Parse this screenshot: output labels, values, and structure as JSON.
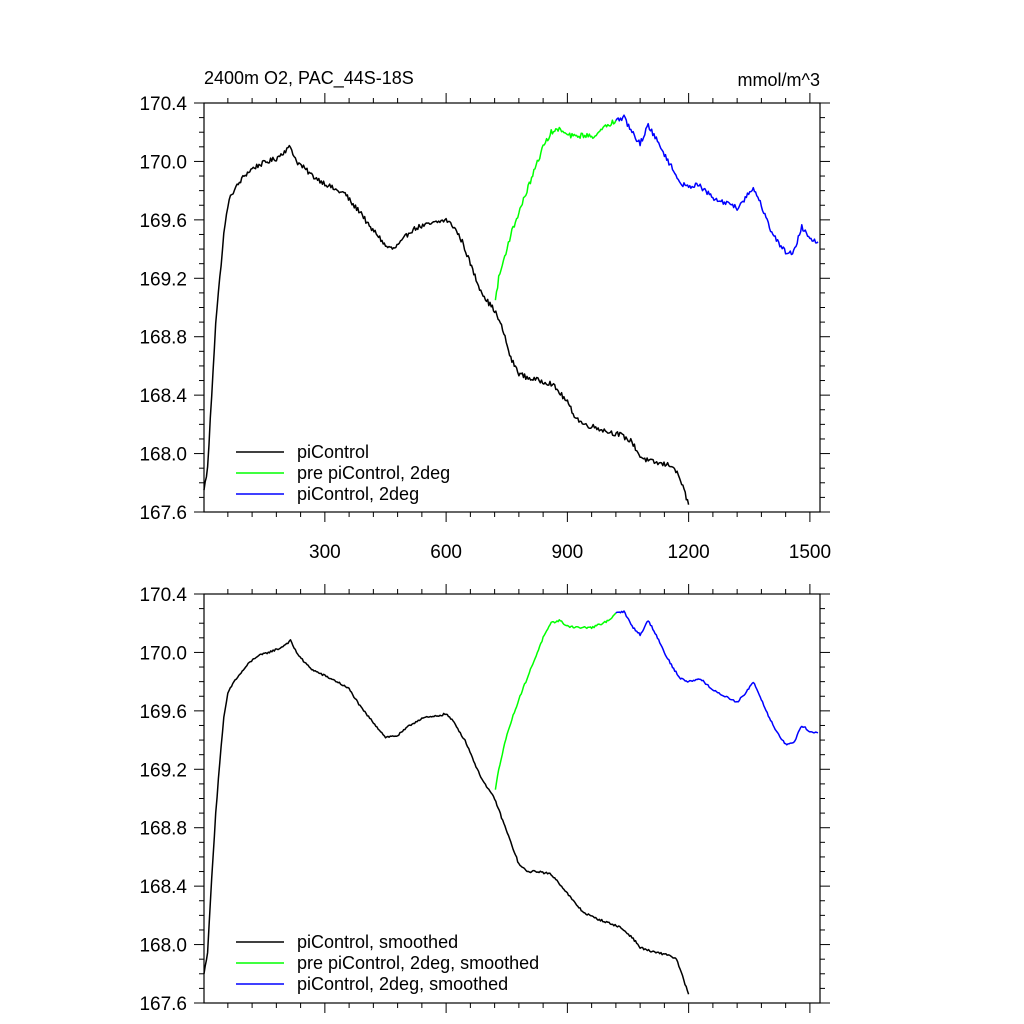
{
  "chart_data": [
    {
      "type": "line",
      "title": "2400m O2, PAC_44S-18S",
      "units": "mmol/m^3",
      "xlabel": "",
      "ylabel": "",
      "xlim": [
        1,
        1525
      ],
      "ylim": [
        167.6,
        170.4
      ],
      "x_ticks": [
        300,
        600,
        900,
        1200,
        1500
      ],
      "x_tick_labels": [
        "300",
        "600",
        "900",
        "1200",
        "1500"
      ],
      "y_ticks": [
        167.6,
        168.0,
        168.4,
        168.8,
        169.2,
        169.6,
        170.0,
        170.4
      ],
      "y_tick_labels": [
        "167.6",
        "168.0",
        "168.4",
        "168.8",
        "169.2",
        "169.6",
        "170.0",
        "170.4"
      ],
      "grid": false,
      "legend_position": "bottom-left",
      "series": [
        {
          "name": "piControl",
          "color": "#000000",
          "points": [
            [
              1,
              167.75
            ],
            [
              10,
              167.9
            ],
            [
              20,
              168.4
            ],
            [
              30,
              168.9
            ],
            [
              40,
              169.2
            ],
            [
              50,
              169.5
            ],
            [
              60,
              169.7
            ],
            [
              70,
              169.78
            ],
            [
              80,
              169.82
            ],
            [
              100,
              169.9
            ],
            [
              120,
              169.95
            ],
            [
              140,
              169.98
            ],
            [
              160,
              170.0
            ],
            [
              180,
              170.02
            ],
            [
              200,
              170.07
            ],
            [
              215,
              170.1
            ],
            [
              230,
              170.0
            ],
            [
              250,
              169.95
            ],
            [
              270,
              169.9
            ],
            [
              300,
              169.85
            ],
            [
              330,
              169.8
            ],
            [
              350,
              169.78
            ],
            [
              370,
              169.7
            ],
            [
              390,
              169.65
            ],
            [
              410,
              169.55
            ],
            [
              430,
              169.5
            ],
            [
              450,
              169.42
            ],
            [
              470,
              169.4
            ],
            [
              490,
              169.45
            ],
            [
              510,
              169.52
            ],
            [
              530,
              169.55
            ],
            [
              560,
              169.57
            ],
            [
              600,
              169.6
            ],
            [
              620,
              169.55
            ],
            [
              640,
              169.45
            ],
            [
              660,
              169.3
            ],
            [
              680,
              169.15
            ],
            [
              700,
              169.05
            ],
            [
              720,
              168.98
            ],
            [
              740,
              168.85
            ],
            [
              760,
              168.65
            ],
            [
              780,
              168.55
            ],
            [
              800,
              168.52
            ],
            [
              830,
              168.5
            ],
            [
              860,
              168.48
            ],
            [
              880,
              168.42
            ],
            [
              900,
              168.35
            ],
            [
              920,
              168.25
            ],
            [
              940,
              168.2
            ],
            [
              970,
              168.18
            ],
            [
              1000,
              168.15
            ],
            [
              1030,
              168.13
            ],
            [
              1060,
              168.08
            ],
            [
              1080,
              167.98
            ],
            [
              1100,
              167.95
            ],
            [
              1130,
              167.93
            ],
            [
              1160,
              167.92
            ],
            [
              1180,
              167.82
            ],
            [
              1200,
              167.65
            ]
          ]
        },
        {
          "name": "pre piControl, 2deg",
          "color": "#00ff00",
          "points": [
            [
              722,
              169.05
            ],
            [
              730,
              169.2
            ],
            [
              745,
              169.35
            ],
            [
              760,
              169.5
            ],
            [
              780,
              169.65
            ],
            [
              800,
              169.8
            ],
            [
              820,
              169.95
            ],
            [
              840,
              170.1
            ],
            [
              860,
              170.2
            ],
            [
              880,
              170.22
            ],
            [
              900,
              170.18
            ],
            [
              920,
              170.17
            ],
            [
              940,
              170.18
            ],
            [
              960,
              170.17
            ],
            [
              980,
              170.2
            ],
            [
              1000,
              170.25
            ],
            [
              1020,
              170.28
            ]
          ]
        },
        {
          "name": "piControl, 2deg",
          "color": "#0000ff",
          "points": [
            [
              1020,
              170.28
            ],
            [
              1040,
              170.3
            ],
            [
              1060,
              170.2
            ],
            [
              1080,
              170.12
            ],
            [
              1100,
              170.25
            ],
            [
              1120,
              170.15
            ],
            [
              1140,
              170.05
            ],
            [
              1160,
              169.95
            ],
            [
              1180,
              169.85
            ],
            [
              1200,
              169.82
            ],
            [
              1220,
              169.85
            ],
            [
              1240,
              169.8
            ],
            [
              1260,
              169.75
            ],
            [
              1280,
              169.72
            ],
            [
              1300,
              169.72
            ],
            [
              1320,
              169.68
            ],
            [
              1340,
              169.75
            ],
            [
              1360,
              169.82
            ],
            [
              1380,
              169.7
            ],
            [
              1400,
              169.55
            ],
            [
              1420,
              169.45
            ],
            [
              1440,
              169.38
            ],
            [
              1460,
              169.38
            ],
            [
              1480,
              169.55
            ],
            [
              1500,
              169.48
            ],
            [
              1520,
              169.45
            ]
          ]
        }
      ]
    },
    {
      "type": "line",
      "title": "",
      "xlabel": "",
      "ylabel": "",
      "xlim": [
        1,
        1525
      ],
      "ylim": [
        167.6,
        170.4
      ],
      "x_ticks": [
        300,
        600,
        900,
        1200,
        1500
      ],
      "x_tick_labels": [],
      "y_ticks": [
        167.6,
        168.0,
        168.4,
        168.8,
        169.2,
        169.6,
        170.0,
        170.4
      ],
      "y_tick_labels": [
        "167.6",
        "168.0",
        "168.4",
        "168.8",
        "169.2",
        "169.6",
        "170.0",
        "170.4"
      ],
      "grid": false,
      "legend_position": "bottom-left",
      "series": [
        {
          "name": "piControl, smoothed",
          "color": "#000000",
          "points": [
            [
              1,
              167.8
            ],
            [
              10,
              167.95
            ],
            [
              20,
              168.45
            ],
            [
              30,
              168.9
            ],
            [
              40,
              169.25
            ],
            [
              50,
              169.55
            ],
            [
              60,
              169.72
            ],
            [
              75,
              169.8
            ],
            [
              90,
              169.85
            ],
            [
              110,
              169.92
            ],
            [
              130,
              169.97
            ],
            [
              160,
              170.0
            ],
            [
              190,
              170.03
            ],
            [
              215,
              170.08
            ],
            [
              230,
              170.0
            ],
            [
              250,
              169.93
            ],
            [
              270,
              169.88
            ],
            [
              300,
              169.84
            ],
            [
              330,
              169.8
            ],
            [
              360,
              169.75
            ],
            [
              390,
              169.62
            ],
            [
              420,
              169.52
            ],
            [
              450,
              169.42
            ],
            [
              480,
              169.43
            ],
            [
              510,
              169.5
            ],
            [
              540,
              169.55
            ],
            [
              570,
              169.56
            ],
            [
              600,
              169.58
            ],
            [
              620,
              169.52
            ],
            [
              650,
              169.38
            ],
            [
              680,
              169.18
            ],
            [
              700,
              169.08
            ],
            [
              720,
              169.0
            ],
            [
              740,
              168.85
            ],
            [
              760,
              168.7
            ],
            [
              780,
              168.55
            ],
            [
              800,
              168.5
            ],
            [
              830,
              168.5
            ],
            [
              860,
              168.48
            ],
            [
              880,
              168.42
            ],
            [
              900,
              168.35
            ],
            [
              920,
              168.28
            ],
            [
              940,
              168.22
            ],
            [
              970,
              168.18
            ],
            [
              1000,
              168.15
            ],
            [
              1030,
              168.12
            ],
            [
              1060,
              168.05
            ],
            [
              1080,
              167.98
            ],
            [
              1110,
              167.95
            ],
            [
              1150,
              167.93
            ],
            [
              1170,
              167.9
            ],
            [
              1185,
              167.78
            ],
            [
              1200,
              167.66
            ]
          ]
        },
        {
          "name": "pre piControl, 2deg, smoothed",
          "color": "#00ff00",
          "points": [
            [
              722,
              169.06
            ],
            [
              730,
              169.2
            ],
            [
              745,
              169.38
            ],
            [
              760,
              169.52
            ],
            [
              780,
              169.68
            ],
            [
              800,
              169.82
            ],
            [
              820,
              169.96
            ],
            [
              840,
              170.1
            ],
            [
              860,
              170.2
            ],
            [
              880,
              170.22
            ],
            [
              900,
              170.18
            ],
            [
              930,
              170.17
            ],
            [
              960,
              170.17
            ],
            [
              990,
              170.2
            ],
            [
              1010,
              170.24
            ],
            [
              1020,
              170.27
            ]
          ]
        },
        {
          "name": "piControl, 2deg, smoothed",
          "color": "#0000ff",
          "points": [
            [
              1020,
              170.27
            ],
            [
              1040,
              170.28
            ],
            [
              1060,
              170.18
            ],
            [
              1080,
              170.12
            ],
            [
              1100,
              170.22
            ],
            [
              1120,
              170.12
            ],
            [
              1140,
              170.0
            ],
            [
              1160,
              169.9
            ],
            [
              1180,
              169.82
            ],
            [
              1200,
              169.8
            ],
            [
              1230,
              169.82
            ],
            [
              1260,
              169.74
            ],
            [
              1290,
              169.7
            ],
            [
              1320,
              169.66
            ],
            [
              1340,
              169.72
            ],
            [
              1360,
              169.8
            ],
            [
              1380,
              169.68
            ],
            [
              1400,
              169.55
            ],
            [
              1420,
              169.45
            ],
            [
              1440,
              169.37
            ],
            [
              1460,
              169.38
            ],
            [
              1480,
              169.5
            ],
            [
              1500,
              169.46
            ],
            [
              1520,
              169.45
            ]
          ]
        }
      ]
    }
  ]
}
